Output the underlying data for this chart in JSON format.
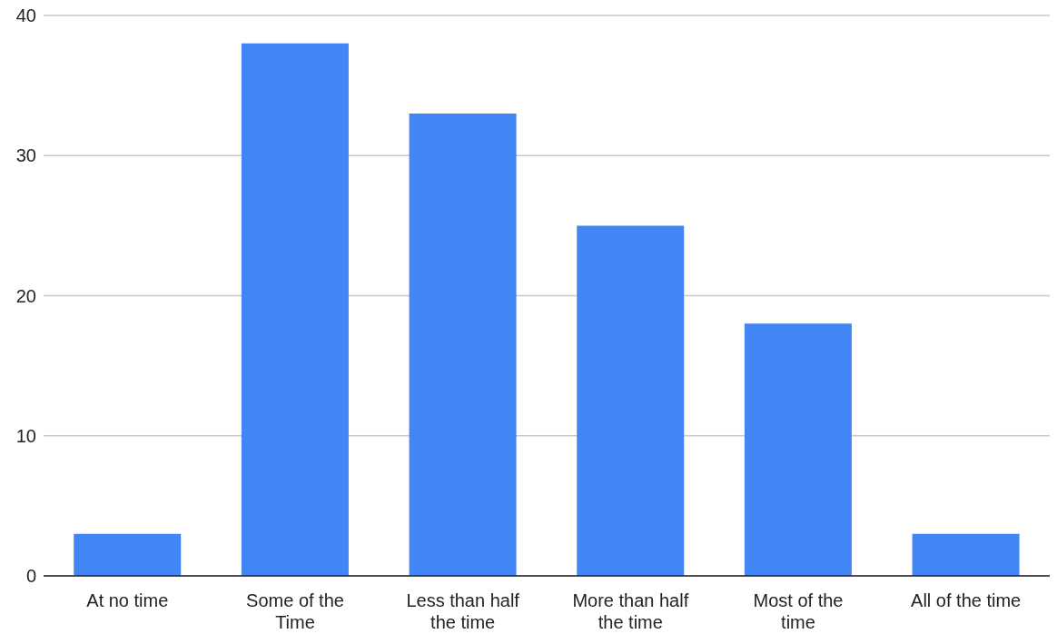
{
  "chart_data": {
    "type": "bar",
    "categories": [
      "At no time",
      "Some of the Time",
      "Less than half the time",
      "More than half the time",
      "Most of the time",
      "All of the time"
    ],
    "values": [
      3,
      38,
      33,
      25,
      18,
      3
    ],
    "color": "#4285f4",
    "ylim": [
      0,
      40
    ],
    "yticks": [
      0,
      10,
      20,
      30,
      40
    ],
    "grid": "y"
  }
}
